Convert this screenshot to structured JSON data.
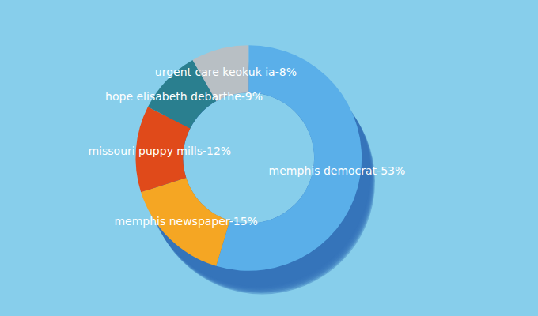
{
  "chart_data": {
    "type": "pie",
    "values": [
      53,
      15,
      12,
      9,
      8
    ],
    "value_labels": [
      "memphis democrat-53%",
      "memphis newspaper-15%",
      "missouri puppy mills-12%",
      "hope elisabeth debarthe-9%",
      "urgent care keokuk ia-8%"
    ],
    "colors": [
      "#5aafe9",
      "#f5a623",
      "#e04a1a",
      "#2a7f8f",
      "#b8bfc4"
    ],
    "data_labels": true
  }
}
